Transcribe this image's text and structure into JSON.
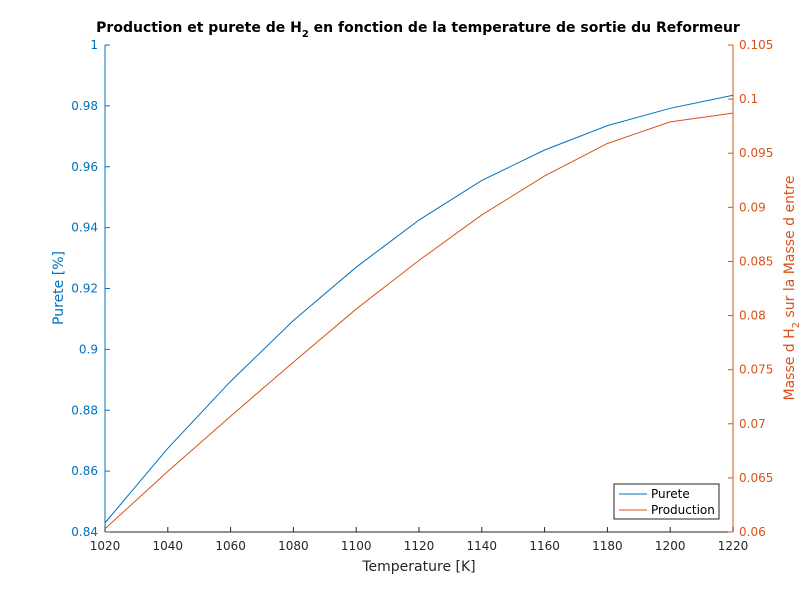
{
  "chart_data": {
    "type": "line",
    "title_main": "Production et purete de H",
    "title_sub": "2",
    "title_rest": " en fonction de la temperature de sortie du Reformeur",
    "xlabel": "Temperature [K]",
    "ylabel_left": "Purete [%]",
    "ylabel_right_main": "Masse d H",
    "ylabel_right_sub": "2",
    "ylabel_right_rest": " sur la Masse d entre",
    "xlim": [
      1020,
      1220
    ],
    "ylim_left": [
      0.84,
      1.0
    ],
    "ylim_right": [
      0.06,
      0.105
    ],
    "x_ticks": [
      "1020",
      "1040",
      "1060",
      "1080",
      "1100",
      "1120",
      "1140",
      "1160",
      "1180",
      "1200",
      "1220"
    ],
    "y_left_ticks": [
      "0.84",
      "0.86",
      "0.88",
      "0.9",
      "0.92",
      "0.94",
      "0.96",
      "0.98",
      "1"
    ],
    "y_right_ticks": [
      "0.06",
      "0.065",
      "0.07",
      "0.075",
      "0.08",
      "0.085",
      "0.09",
      "0.095",
      "0.1",
      "0.105"
    ],
    "legend_position": "bottom-right",
    "colors": {
      "purete": "#0072BD",
      "production": "#D95319",
      "axis": "#262626"
    },
    "series": [
      {
        "name": "Purete",
        "axis": "left",
        "x": [
          1020,
          1040,
          1060,
          1080,
          1100,
          1120,
          1140,
          1160,
          1180,
          1200,
          1220
        ],
        "y": [
          0.843,
          0.8675,
          0.8895,
          0.9095,
          0.927,
          0.9425,
          0.9555,
          0.9655,
          0.9735,
          0.9792,
          0.9835
        ]
      },
      {
        "name": "Production",
        "axis": "right",
        "x": [
          1020,
          1040,
          1060,
          1080,
          1100,
          1120,
          1140,
          1160,
          1180,
          1200,
          1220
        ],
        "y": [
          0.0603,
          0.0656,
          0.0707,
          0.0757,
          0.0806,
          0.0851,
          0.0893,
          0.0929,
          0.0959,
          0.0979,
          0.0987
        ]
      }
    ]
  }
}
